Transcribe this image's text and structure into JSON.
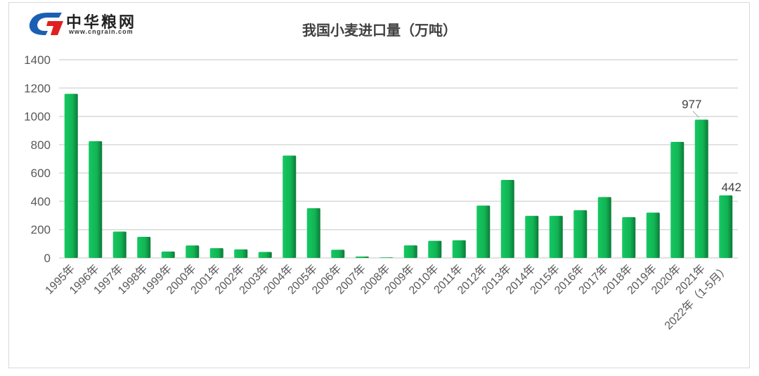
{
  "logo": {
    "text": "中华粮网",
    "url": "www.cngrain.com",
    "colors": {
      "blue": "#1a5fb4",
      "red": "#e02020"
    }
  },
  "chart_data": {
    "type": "bar",
    "title": "我国小麦进口量（万吨）",
    "categories": [
      "1995年",
      "1996年",
      "1997年",
      "1998年",
      "1999年",
      "2000年",
      "2001年",
      "2002年",
      "2003年",
      "2004年",
      "2005年",
      "2006年",
      "2007年",
      "2008年",
      "2009年",
      "2010年",
      "2011年",
      "2012年",
      "2013年",
      "2014年",
      "2015年",
      "2016年",
      "2017年",
      "2018年",
      "2019年",
      "2020年",
      "2021年",
      "2022年（1-5月）"
    ],
    "values": [
      1159,
      825,
      186,
      149,
      45,
      88,
      69,
      60,
      42,
      723,
      351,
      58,
      10,
      4,
      89,
      121,
      125,
      370,
      551,
      297,
      297,
      337,
      430,
      288,
      320,
      820,
      977,
      442
    ],
    "data_labels": {
      "26": "977",
      "27": "442"
    },
    "yticks": [
      "0",
      "200",
      "400",
      "600",
      "800",
      "1000",
      "1200",
      "1400"
    ],
    "ylim": [
      0,
      1400
    ],
    "grid": true,
    "bar_color": "#12b454",
    "xlabel": "",
    "ylabel": ""
  }
}
